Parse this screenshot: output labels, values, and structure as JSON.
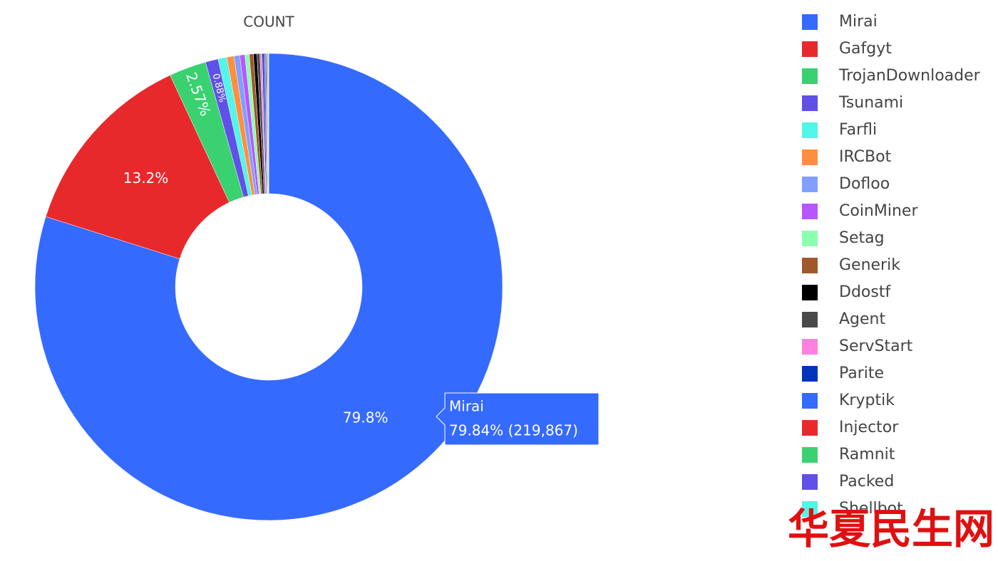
{
  "chart_data": {
    "type": "pie",
    "title": "COUNT",
    "hole": true,
    "categories": [
      "Mirai",
      "Gafgyt",
      "TrojanDownloader",
      "Tsunami",
      "Farfli",
      "IRCBot",
      "Dofloo",
      "CoinMiner",
      "Setag",
      "Generik",
      "Ddostf",
      "Agent",
      "ServStart",
      "Parite",
      "Kryptik",
      "Injector",
      "Ramnit",
      "Packed",
      "Shellbot"
    ],
    "values": [
      79.84,
      13.2,
      2.57,
      0.88,
      0.6,
      0.5,
      0.4,
      0.35,
      0.3,
      0.28,
      0.25,
      0.2,
      0.15,
      0.12,
      0.1,
      0.08,
      0.06,
      0.05,
      0.04
    ],
    "value_labels": [
      "79.8%",
      "13.2%",
      "2.57%",
      "0.88%",
      null,
      null,
      null,
      null,
      null,
      null,
      null,
      null,
      null,
      null,
      null,
      null,
      null,
      null,
      null
    ],
    "colors": [
      "#356aff",
      "#e8292b",
      "#3ad170",
      "#6050e8",
      "#52f5e8",
      "#ff8f40",
      "#80a0ff",
      "#b856ff",
      "#8cffb0",
      "#a0582a",
      "#000000",
      "#4a4a4a",
      "#ff80e0",
      "#0033bb",
      "#356aff",
      "#e8292b",
      "#3ad170",
      "#6050e8",
      "#52f5e8"
    ],
    "hover": {
      "title": "Mirai",
      "text": "79.84% (219,867)"
    }
  },
  "watermark": "华夏民生网"
}
